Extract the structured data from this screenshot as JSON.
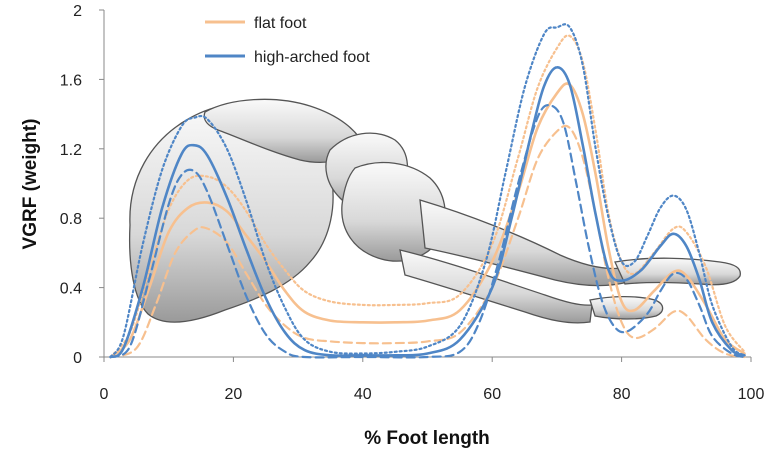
{
  "chart_data": {
    "type": "line",
    "xlabel": "% Foot length",
    "ylabel": "VGRF (weight)",
    "xlim": [
      0,
      100
    ],
    "ylim": [
      0,
      2
    ],
    "x_ticks": [
      "0",
      "20",
      "40",
      "60",
      "80",
      "100"
    ],
    "y_ticks": [
      "0",
      "0.4",
      "0.8",
      "1.2",
      "1.6",
      "2"
    ],
    "grid": false,
    "legend": {
      "placement": "top-center",
      "entries": [
        {
          "label": "flat foot",
          "color": "#f7c08f"
        },
        {
          "label": "high-arched foot",
          "color": "#4f86c6"
        }
      ]
    },
    "background_image": "foot-skeleton-icon",
    "series": [
      {
        "group": "flat foot",
        "style": "solid",
        "color": "#f7c08f",
        "points": [
          [
            1,
            0
          ],
          [
            4,
            0.1
          ],
          [
            7,
            0.4
          ],
          [
            10,
            0.72
          ],
          [
            13,
            0.86
          ],
          [
            16,
            0.89
          ],
          [
            19,
            0.84
          ],
          [
            22,
            0.7
          ],
          [
            25,
            0.55
          ],
          [
            28,
            0.38
          ],
          [
            31,
            0.26
          ],
          [
            35,
            0.21
          ],
          [
            40,
            0.2
          ],
          [
            45,
            0.2
          ],
          [
            50,
            0.21
          ],
          [
            55,
            0.27
          ],
          [
            60,
            0.55
          ],
          [
            64,
            0.95
          ],
          [
            67,
            1.32
          ],
          [
            70,
            1.52
          ],
          [
            72,
            1.57
          ],
          [
            74,
            1.4
          ],
          [
            76,
            1.05
          ],
          [
            78,
            0.62
          ],
          [
            80,
            0.32
          ],
          [
            82,
            0.27
          ],
          [
            85,
            0.38
          ],
          [
            88,
            0.49
          ],
          [
            90,
            0.47
          ],
          [
            93,
            0.3
          ],
          [
            96,
            0.1
          ],
          [
            99,
            0.02
          ]
        ]
      },
      {
        "group": "flat foot",
        "style": "dashed",
        "color": "#f7c08f",
        "points": [
          [
            1,
            0
          ],
          [
            5,
            0.05
          ],
          [
            8,
            0.3
          ],
          [
            11,
            0.6
          ],
          [
            14,
            0.73
          ],
          [
            16,
            0.74
          ],
          [
            19,
            0.66
          ],
          [
            22,
            0.48
          ],
          [
            25,
            0.3
          ],
          [
            28,
            0.18
          ],
          [
            31,
            0.11
          ],
          [
            35,
            0.09
          ],
          [
            40,
            0.08
          ],
          [
            45,
            0.08
          ],
          [
            50,
            0.09
          ],
          [
            55,
            0.14
          ],
          [
            60,
            0.4
          ],
          [
            64,
            0.8
          ],
          [
            67,
            1.14
          ],
          [
            70,
            1.3
          ],
          [
            72,
            1.32
          ],
          [
            74,
            1.15
          ],
          [
            76,
            0.82
          ],
          [
            78,
            0.45
          ],
          [
            80,
            0.2
          ],
          [
            82,
            0.11
          ],
          [
            85,
            0.16
          ],
          [
            88,
            0.26
          ],
          [
            90,
            0.24
          ],
          [
            93,
            0.1
          ],
          [
            96,
            0.02
          ],
          [
            99,
            0
          ]
        ]
      },
      {
        "group": "flat foot",
        "style": "dotted",
        "color": "#f7c08f",
        "points": [
          [
            1,
            0
          ],
          [
            4,
            0.14
          ],
          [
            7,
            0.5
          ],
          [
            10,
            0.85
          ],
          [
            13,
            1.02
          ],
          [
            16,
            1.04
          ],
          [
            19,
            0.98
          ],
          [
            22,
            0.84
          ],
          [
            25,
            0.65
          ],
          [
            28,
            0.5
          ],
          [
            31,
            0.38
          ],
          [
            35,
            0.32
          ],
          [
            40,
            0.3
          ],
          [
            45,
            0.3
          ],
          [
            50,
            0.31
          ],
          [
            55,
            0.36
          ],
          [
            60,
            0.65
          ],
          [
            64,
            1.15
          ],
          [
            67,
            1.55
          ],
          [
            70,
            1.78
          ],
          [
            72,
            1.85
          ],
          [
            74,
            1.7
          ],
          [
            76,
            1.3
          ],
          [
            78,
            0.82
          ],
          [
            80,
            0.55
          ],
          [
            82,
            0.48
          ],
          [
            85,
            0.6
          ],
          [
            88,
            0.74
          ],
          [
            90,
            0.72
          ],
          [
            93,
            0.52
          ],
          [
            96,
            0.18
          ],
          [
            99,
            0.03
          ]
        ]
      },
      {
        "group": "high-arched foot",
        "style": "solid",
        "color": "#4f86c6",
        "points": [
          [
            1,
            0
          ],
          [
            3,
            0.05
          ],
          [
            6,
            0.4
          ],
          [
            9,
            0.86
          ],
          [
            12,
            1.17
          ],
          [
            14,
            1.22
          ],
          [
            16,
            1.16
          ],
          [
            19,
            0.92
          ],
          [
            22,
            0.62
          ],
          [
            25,
            0.34
          ],
          [
            28,
            0.14
          ],
          [
            31,
            0.04
          ],
          [
            35,
            0.01
          ],
          [
            40,
            0.01
          ],
          [
            45,
            0.01
          ],
          [
            50,
            0.02
          ],
          [
            55,
            0.1
          ],
          [
            60,
            0.4
          ],
          [
            63,
            0.8
          ],
          [
            66,
            1.28
          ],
          [
            68,
            1.56
          ],
          [
            70,
            1.67
          ],
          [
            72,
            1.57
          ],
          [
            74,
            1.22
          ],
          [
            76,
            0.82
          ],
          [
            78,
            0.5
          ],
          [
            80,
            0.44
          ],
          [
            83,
            0.5
          ],
          [
            86,
            0.64
          ],
          [
            88,
            0.71
          ],
          [
            90,
            0.64
          ],
          [
            92,
            0.45
          ],
          [
            94,
            0.2
          ],
          [
            97,
            0.04
          ],
          [
            99,
            0.01
          ]
        ]
      },
      {
        "group": "high-arched foot",
        "style": "dashed",
        "color": "#4f86c6",
        "points": [
          [
            1,
            0
          ],
          [
            4,
            0.06
          ],
          [
            7,
            0.45
          ],
          [
            10,
            0.88
          ],
          [
            12,
            1.05
          ],
          [
            14,
            1.07
          ],
          [
            16,
            0.95
          ],
          [
            19,
            0.65
          ],
          [
            22,
            0.35
          ],
          [
            25,
            0.13
          ],
          [
            28,
            0.03
          ],
          [
            31,
            0
          ],
          [
            40,
            0
          ],
          [
            50,
            0
          ],
          [
            55,
            0.03
          ],
          [
            58,
            0.2
          ],
          [
            61,
            0.55
          ],
          [
            64,
            1.0
          ],
          [
            67,
            1.38
          ],
          [
            69,
            1.45
          ],
          [
            71,
            1.35
          ],
          [
            73,
            1.0
          ],
          [
            75,
            0.62
          ],
          [
            77,
            0.32
          ],
          [
            79,
            0.17
          ],
          [
            81,
            0.15
          ],
          [
            84,
            0.25
          ],
          [
            86,
            0.38
          ],
          [
            88,
            0.48
          ],
          [
            90,
            0.45
          ],
          [
            92,
            0.3
          ],
          [
            94,
            0.12
          ],
          [
            97,
            0.02
          ],
          [
            99,
            0
          ]
        ]
      },
      {
        "group": "high-arched foot",
        "style": "dotted",
        "color": "#4f86c6",
        "points": [
          [
            1,
            0
          ],
          [
            3,
            0.12
          ],
          [
            6,
            0.65
          ],
          [
            9,
            1.08
          ],
          [
            12,
            1.33
          ],
          [
            14,
            1.38
          ],
          [
            16,
            1.37
          ],
          [
            19,
            1.2
          ],
          [
            22,
            0.9
          ],
          [
            25,
            0.55
          ],
          [
            28,
            0.28
          ],
          [
            31,
            0.1
          ],
          [
            35,
            0.03
          ],
          [
            40,
            0.02
          ],
          [
            45,
            0.03
          ],
          [
            50,
            0.06
          ],
          [
            55,
            0.18
          ],
          [
            59,
            0.55
          ],
          [
            62,
            1.05
          ],
          [
            65,
            1.55
          ],
          [
            68,
            1.86
          ],
          [
            70,
            1.9
          ],
          [
            72,
            1.9
          ],
          [
            74,
            1.68
          ],
          [
            76,
            1.2
          ],
          [
            78,
            0.8
          ],
          [
            80,
            0.55
          ],
          [
            82,
            0.55
          ],
          [
            84,
            0.7
          ],
          [
            86,
            0.86
          ],
          [
            88,
            0.93
          ],
          [
            90,
            0.85
          ],
          [
            92,
            0.6
          ],
          [
            94,
            0.3
          ],
          [
            97,
            0.06
          ],
          [
            99,
            0.01
          ]
        ]
      }
    ]
  }
}
